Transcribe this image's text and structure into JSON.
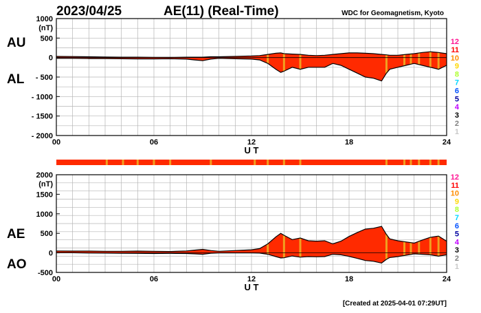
{
  "header": {
    "date": "2023/04/25",
    "title": "AE(11) (Real-Time)",
    "source": "WDC for Geomagnetism, Kyoto"
  },
  "footer": {
    "created": "[Created at 2025-04-01 07:29UT]"
  },
  "colors": {
    "fill": "#ff2a00",
    "outline": "#000000",
    "grid": "#b4b4b4",
    "station_bar_fill": "#ff2a00",
    "station_bar_highlight": "#f0a020"
  },
  "station_count_legend": {
    "labels": [
      "12",
      "11",
      "10",
      "9",
      "8",
      "7",
      "6",
      "5",
      "4",
      "3",
      "2",
      "1"
    ],
    "colors": [
      "#ff1493",
      "#ff0000",
      "#ff8c00",
      "#ffd700",
      "#adff2f",
      "#00d5ff",
      "#0050ff",
      "#0000a0",
      "#c000ff",
      "#000000",
      "#808080",
      "#c8c8c8"
    ]
  },
  "station_bar": {
    "highlight_hours": [
      3.1,
      4.1,
      5.0,
      6.0,
      7.0,
      9.5,
      12.2,
      13.0,
      14.0,
      15.0,
      20.3,
      21.4,
      21.8,
      22.3,
      23.0,
      23.5
    ]
  },
  "chart_data": [
    {
      "type": "area",
      "name_labels": {
        "upper": "AU",
        "lower": "AL"
      },
      "ylabel": "(nT)",
      "xlabel": "U T",
      "xlim": [
        0,
        24
      ],
      "ylim": [
        -2000,
        1000
      ],
      "yticks": [
        1000,
        500,
        0,
        -500,
        -1000,
        -1500,
        -2000
      ],
      "ytick_labels": [
        "1000",
        "500",
        "0",
        "- 500",
        "- 1000",
        "- 1500",
        "- 2000"
      ],
      "xticks": [
        0,
        6,
        12,
        18,
        24
      ],
      "xtick_labels": [
        "00",
        "06",
        "12",
        "18",
        "24"
      ],
      "grid": true,
      "x": [
        0,
        1,
        2,
        3,
        4,
        5,
        6,
        7,
        8,
        8.5,
        9,
        9.5,
        10,
        11,
        12,
        12.5,
        13,
        13.5,
        13.8,
        14,
        14.5,
        15,
        15.5,
        16,
        16.5,
        17,
        17.5,
        18,
        18.5,
        19,
        19.5,
        20,
        20.3,
        20.5,
        21,
        21.5,
        22,
        22.5,
        23,
        23.5,
        24
      ],
      "series": [
        {
          "name": "AU",
          "values": [
            30,
            25,
            20,
            15,
            10,
            10,
            5,
            5,
            10,
            10,
            10,
            20,
            20,
            30,
            40,
            50,
            80,
            110,
            120,
            100,
            90,
            80,
            60,
            50,
            60,
            80,
            100,
            120,
            120,
            110,
            100,
            80,
            70,
            60,
            60,
            80,
            100,
            130,
            150,
            130,
            100
          ]
        },
        {
          "name": "AL",
          "values": [
            -20,
            -20,
            -25,
            -25,
            -30,
            -35,
            -35,
            -30,
            -40,
            -60,
            -80,
            -40,
            -20,
            -30,
            -40,
            -60,
            -150,
            -300,
            -380,
            -350,
            -250,
            -300,
            -250,
            -250,
            -250,
            -150,
            -200,
            -300,
            -400,
            -500,
            -530,
            -600,
            -400,
            -300,
            -250,
            -200,
            -150,
            -200,
            -250,
            -300,
            -200
          ]
        }
      ]
    },
    {
      "type": "area",
      "name_labels": {
        "upper": "AE",
        "lower": "AO"
      },
      "ylabel": "(nT)",
      "xlabel": "U T",
      "xlim": [
        0,
        24
      ],
      "ylim": [
        -500,
        2000
      ],
      "yticks": [
        2000,
        1500,
        1000,
        500,
        0,
        -500
      ],
      "ytick_labels": [
        "2000",
        "1500",
        "1000",
        "500",
        "0",
        "-500"
      ],
      "xticks": [
        0,
        6,
        12,
        18,
        24
      ],
      "xtick_labels": [
        "00",
        "06",
        "12",
        "18",
        "24"
      ],
      "grid": true,
      "x": [
        0,
        1,
        2,
        3,
        4,
        5,
        6,
        7,
        8,
        8.5,
        9,
        9.5,
        10,
        11,
        12,
        12.5,
        13,
        13.5,
        13.8,
        14,
        14.5,
        15,
        15.5,
        16,
        16.5,
        17,
        17.5,
        18,
        18.5,
        19,
        19.5,
        20,
        20.3,
        20.5,
        21,
        21.5,
        22,
        22.5,
        23,
        23.5,
        24
      ],
      "series": [
        {
          "name": "AE",
          "values": [
            50,
            45,
            45,
            40,
            40,
            45,
            40,
            35,
            50,
            70,
            90,
            60,
            40,
            60,
            80,
            110,
            230,
            410,
            500,
            450,
            340,
            380,
            310,
            300,
            310,
            230,
            300,
            420,
            520,
            610,
            630,
            680,
            470,
            360,
            310,
            280,
            250,
            330,
            400,
            430,
            300
          ]
        },
        {
          "name": "AO",
          "values": [
            5,
            3,
            -3,
            -5,
            -10,
            -13,
            -15,
            -13,
            -15,
            -25,
            -35,
            -10,
            0,
            0,
            0,
            -5,
            -35,
            -95,
            -130,
            -125,
            -80,
            -110,
            -95,
            -100,
            -95,
            -35,
            -50,
            -90,
            -140,
            -195,
            -215,
            -260,
            -165,
            -120,
            -95,
            -60,
            -25,
            -35,
            -50,
            -85,
            -50
          ]
        }
      ]
    }
  ]
}
